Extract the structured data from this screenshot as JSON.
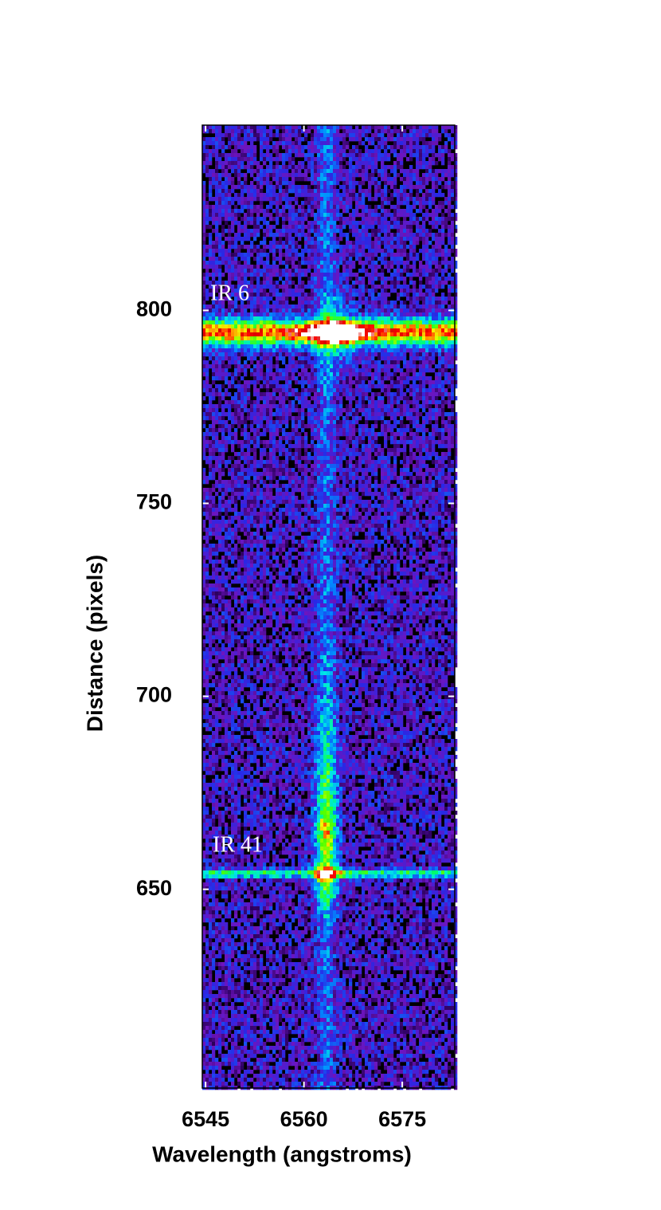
{
  "chart_data": {
    "type": "spectrum-image",
    "xlabel": "Wavelength (angstroms)",
    "ylabel": "Distance (pixels)",
    "xlim": [
      6544.5,
      6583
    ],
    "xticks": [
      6545,
      6560,
      6575
    ],
    "ylim": [
      598.5,
      848
    ],
    "yticks": [
      650,
      700,
      750,
      800
    ],
    "annotations": [
      "IR 6",
      "IR 41"
    ]
  }
}
